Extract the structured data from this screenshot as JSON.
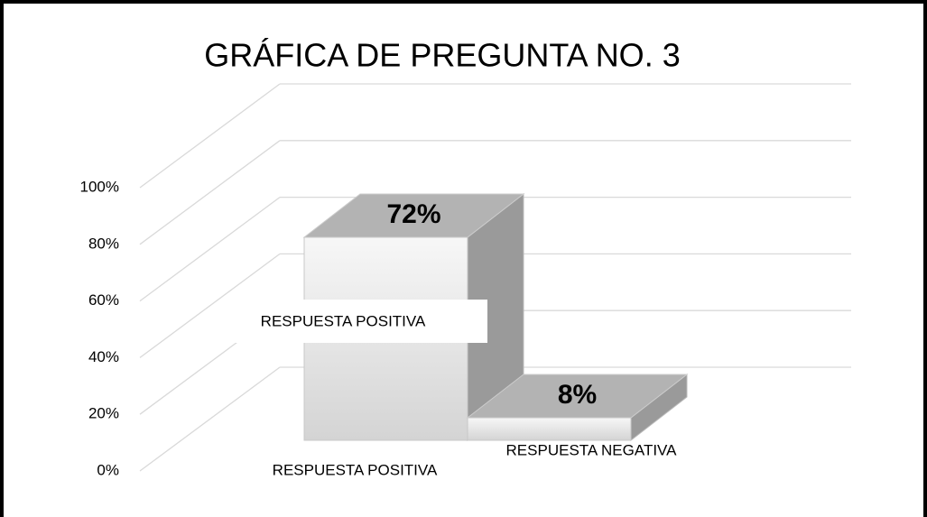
{
  "chart_data": {
    "type": "bar3d",
    "title": "GRÁFICA DE PREGUNTA NO. 3",
    "categories": [
      "RESPUESTA POSITIVA",
      "RESPUESTA NEGATIVA"
    ],
    "values": [
      72,
      8
    ],
    "value_labels": [
      "72%",
      "8%"
    ],
    "ylim": [
      0,
      100
    ],
    "yticks": [
      {
        "value": 0,
        "label": "0%"
      },
      {
        "value": 20,
        "label": "20%"
      },
      {
        "value": 40,
        "label": "40%"
      },
      {
        "value": 60,
        "label": "60%"
      },
      {
        "value": 80,
        "label": "80%"
      },
      {
        "value": 100,
        "label": "100%"
      }
    ],
    "grid": true
  }
}
